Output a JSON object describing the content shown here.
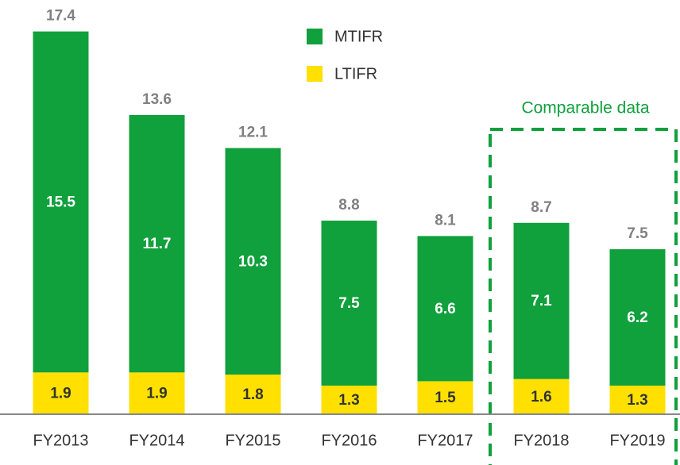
{
  "chart_data": {
    "type": "stacked_bar",
    "categories": [
      "FY2013",
      "FY2014",
      "FY2015",
      "FY2016",
      "FY2017",
      "FY2018",
      "FY2019"
    ],
    "series": [
      {
        "name": "LTIFR",
        "color": "#ffe000",
        "values": [
          1.9,
          1.9,
          1.8,
          1.3,
          1.5,
          1.6,
          1.3
        ]
      },
      {
        "name": "MTIFR",
        "color": "#10a03c",
        "values": [
          15.5,
          11.7,
          10.3,
          7.5,
          6.6,
          7.1,
          6.2
        ]
      }
    ],
    "totals": [
      17.4,
      13.6,
      12.1,
      8.8,
      8.1,
      8.7,
      7.5
    ],
    "annotation": "Comparable data",
    "ylim": [
      0,
      18
    ]
  }
}
